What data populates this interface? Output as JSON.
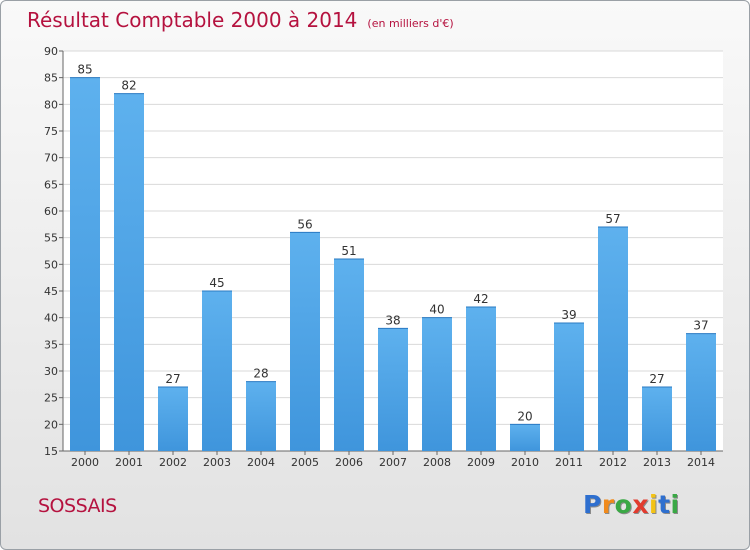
{
  "chart_data": {
    "type": "bar",
    "title": "Résultat Comptable 2000 à 2014",
    "unit_note": "(en milliers d'€)",
    "categories": [
      "2000",
      "2001",
      "2002",
      "2003",
      "2004",
      "2005",
      "2006",
      "2007",
      "2008",
      "2009",
      "2010",
      "2011",
      "2012",
      "2013",
      "2014"
    ],
    "values": [
      85,
      82,
      27,
      45,
      28,
      56,
      51,
      38,
      40,
      42,
      20,
      39,
      57,
      27,
      37
    ],
    "ylim": [
      15,
      90
    ],
    "yticks": [
      15,
      20,
      25,
      30,
      35,
      40,
      45,
      50,
      55,
      60,
      65,
      70,
      75,
      80,
      85,
      90
    ],
    "xlabel": "",
    "ylabel": "",
    "grid": true,
    "bar_color": "#3f95dc"
  },
  "footer": {
    "town": "SOSSAIS",
    "brand_letters": [
      {
        "ch": "P",
        "color": "#2e6fcf"
      },
      {
        "ch": "r",
        "color": "#f08a1c"
      },
      {
        "ch": "o",
        "color": "#3aa845"
      },
      {
        "ch": "x",
        "color": "#e23b2e"
      },
      {
        "ch": "i",
        "color": "#f3c316"
      },
      {
        "ch": "t",
        "color": "#2e6fcf"
      },
      {
        "ch": "i",
        "color": "#3aa845"
      }
    ]
  }
}
